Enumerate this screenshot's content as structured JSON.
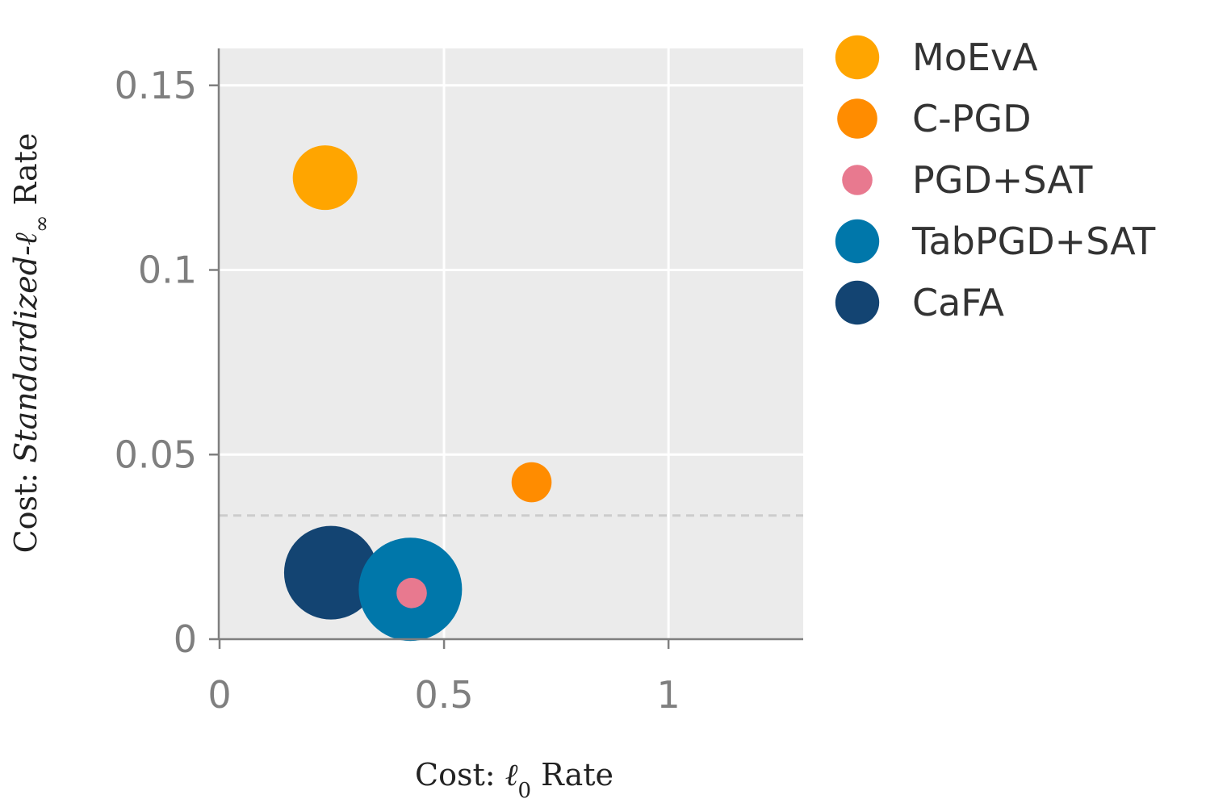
{
  "chart_data": {
    "type": "scatter",
    "title": "",
    "xlabel_parts": [
      "Cost: ",
      "ℓ",
      "0",
      " Rate"
    ],
    "ylabel_parts": [
      "Cost: ",
      "Standardized-ℓ",
      "∞",
      " Rate"
    ],
    "xlim": [
      0,
      1.3
    ],
    "ylim": [
      0,
      0.16
    ],
    "x_ticks": [
      {
        "value": 0,
        "label": "0"
      },
      {
        "value": 0.5,
        "label": "0.5"
      },
      {
        "value": 1,
        "label": "1"
      }
    ],
    "y_ticks": [
      {
        "value": 0,
        "label": "0"
      },
      {
        "value": 0.05,
        "label": "0.05"
      },
      {
        "value": 0.1,
        "label": "0.1"
      },
      {
        "value": 0.15,
        "label": "0.15"
      }
    ],
    "grid": true,
    "reference_line": {
      "orientation": "horizontal",
      "y": 0.0335,
      "style": "dashed",
      "color": "#cccccc"
    },
    "legend_position": "right",
    "series": [
      {
        "name": "MoEvA",
        "x": 0.235,
        "y": 0.125,
        "size": 1.0,
        "color": "#ffa500"
      },
      {
        "name": "C-PGD",
        "x": 0.695,
        "y": 0.0425,
        "size": 0.62,
        "color": "#ff8c00"
      },
      {
        "name": "PGD+SAT",
        "x": 0.428,
        "y": 0.0125,
        "size": 0.47,
        "color": "#e8798f"
      },
      {
        "name": "TabPGD+SAT",
        "x": 0.425,
        "y": 0.0135,
        "size": 1.6,
        "color": "#0077aa"
      },
      {
        "name": "CaFA",
        "x": 0.248,
        "y": 0.018,
        "size": 1.45,
        "color": "#134472"
      }
    ],
    "draw_order": [
      "MoEvA",
      "C-PGD",
      "CaFA",
      "TabPGD+SAT",
      "PGD+SAT"
    ]
  },
  "colors": {
    "panel_background": "#ebebeb",
    "gridline": "#ffffff",
    "axis_line": "#7f7f7f"
  }
}
